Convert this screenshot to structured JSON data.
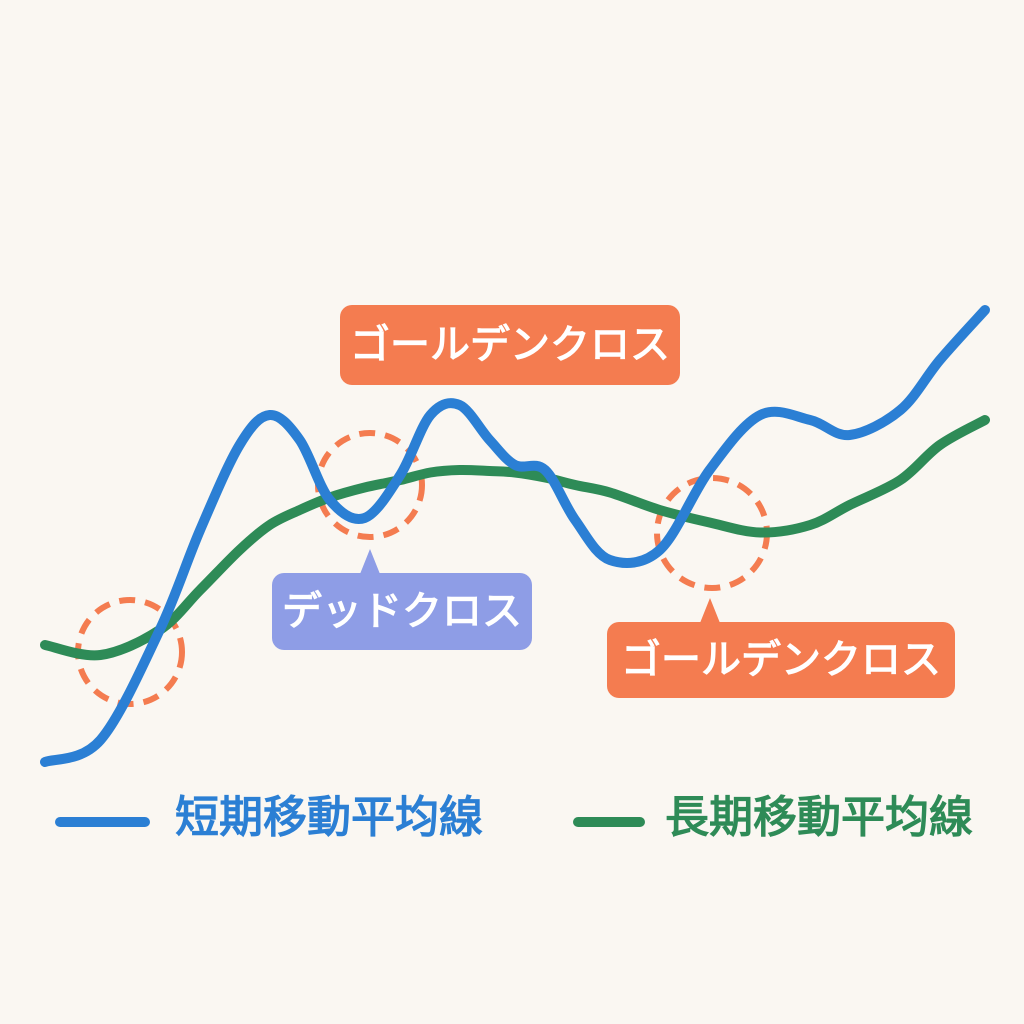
{
  "chart_data": {
    "type": "line",
    "x": [
      0,
      5.9,
      12.2,
      16.5,
      20.7,
      23.9,
      27.1,
      30.3,
      34,
      37.8,
      41,
      44.1,
      47.3,
      50,
      53.2,
      56.4,
      60.1,
      65.4,
      70.7,
      76.1,
      81.4,
      85.6,
      91,
      95.2,
      100
    ],
    "series": [
      {
        "name": "短期移動平均線",
        "color": "#2b7fd4",
        "values": [
          7.6,
          12,
          34,
          54,
          71,
          77,
          72,
          60,
          56.4,
          65,
          77,
          79,
          72,
          67,
          66,
          56,
          48,
          50,
          66,
          77,
          76,
          73,
          78,
          88,
          98
        ]
      },
      {
        "name": "長期移動平均線",
        "color": "#2e8b57",
        "values": [
          31,
          29,
          34,
          42,
          50,
          55,
          58,
          60.5,
          62.5,
          64,
          65.5,
          66,
          65.8,
          65.5,
          64.5,
          63,
          61.5,
          58,
          55.5,
          53.5,
          55,
          59,
          64,
          71,
          76
        ]
      }
    ],
    "xlim": [
      0,
      100
    ],
    "ylim": [
      0,
      100
    ],
    "annotations": [
      "ゴールデンクロス",
      "デッドクロス",
      "ゴールデンクロス"
    ]
  }
}
